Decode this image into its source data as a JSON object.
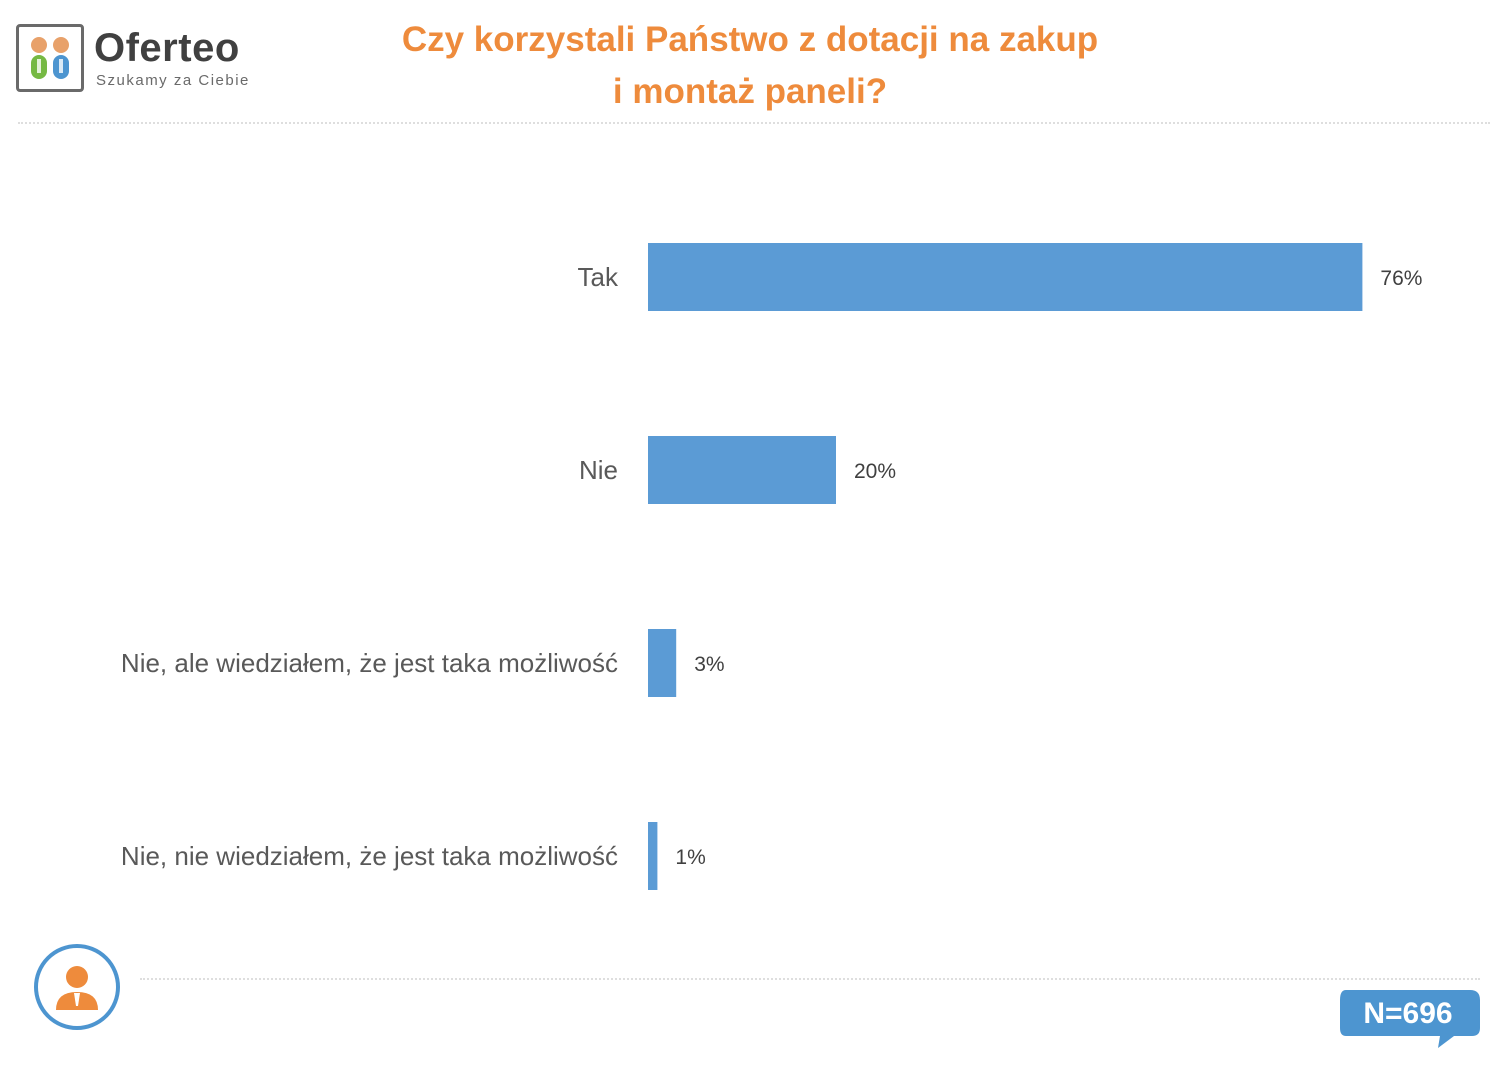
{
  "brand": {
    "name": "Oferteo",
    "tagline": "Szukamy za Ciebie",
    "colors": {
      "orange": "#e8a16a",
      "green": "#76b944",
      "blue": "#4d95d0"
    }
  },
  "header": {
    "title": "Czy korzystali Państwo z dotacji na zakup i montaż paneli?"
  },
  "footer": {
    "sample_size": "N=696",
    "person_icon": "person-icon"
  },
  "chart_data": {
    "type": "bar",
    "orientation": "horizontal",
    "title": "Czy korzystali Państwo z dotacji na zakup i montaż paneli?",
    "categories": [
      "Tak",
      "Nie",
      "Nie, ale wiedziałem, że jest taka możliwość",
      "Nie, nie wiedziałem, że jest taka możliwość"
    ],
    "values": [
      76,
      20,
      3,
      1
    ],
    "value_labels": [
      "76%",
      "20%",
      "3%",
      "1%"
    ],
    "unit": "%",
    "xlim": [
      0,
      100
    ],
    "grid": false,
    "legend": "none",
    "bar_color": "#5b9bd5",
    "title_color": "#ee8b3c"
  }
}
